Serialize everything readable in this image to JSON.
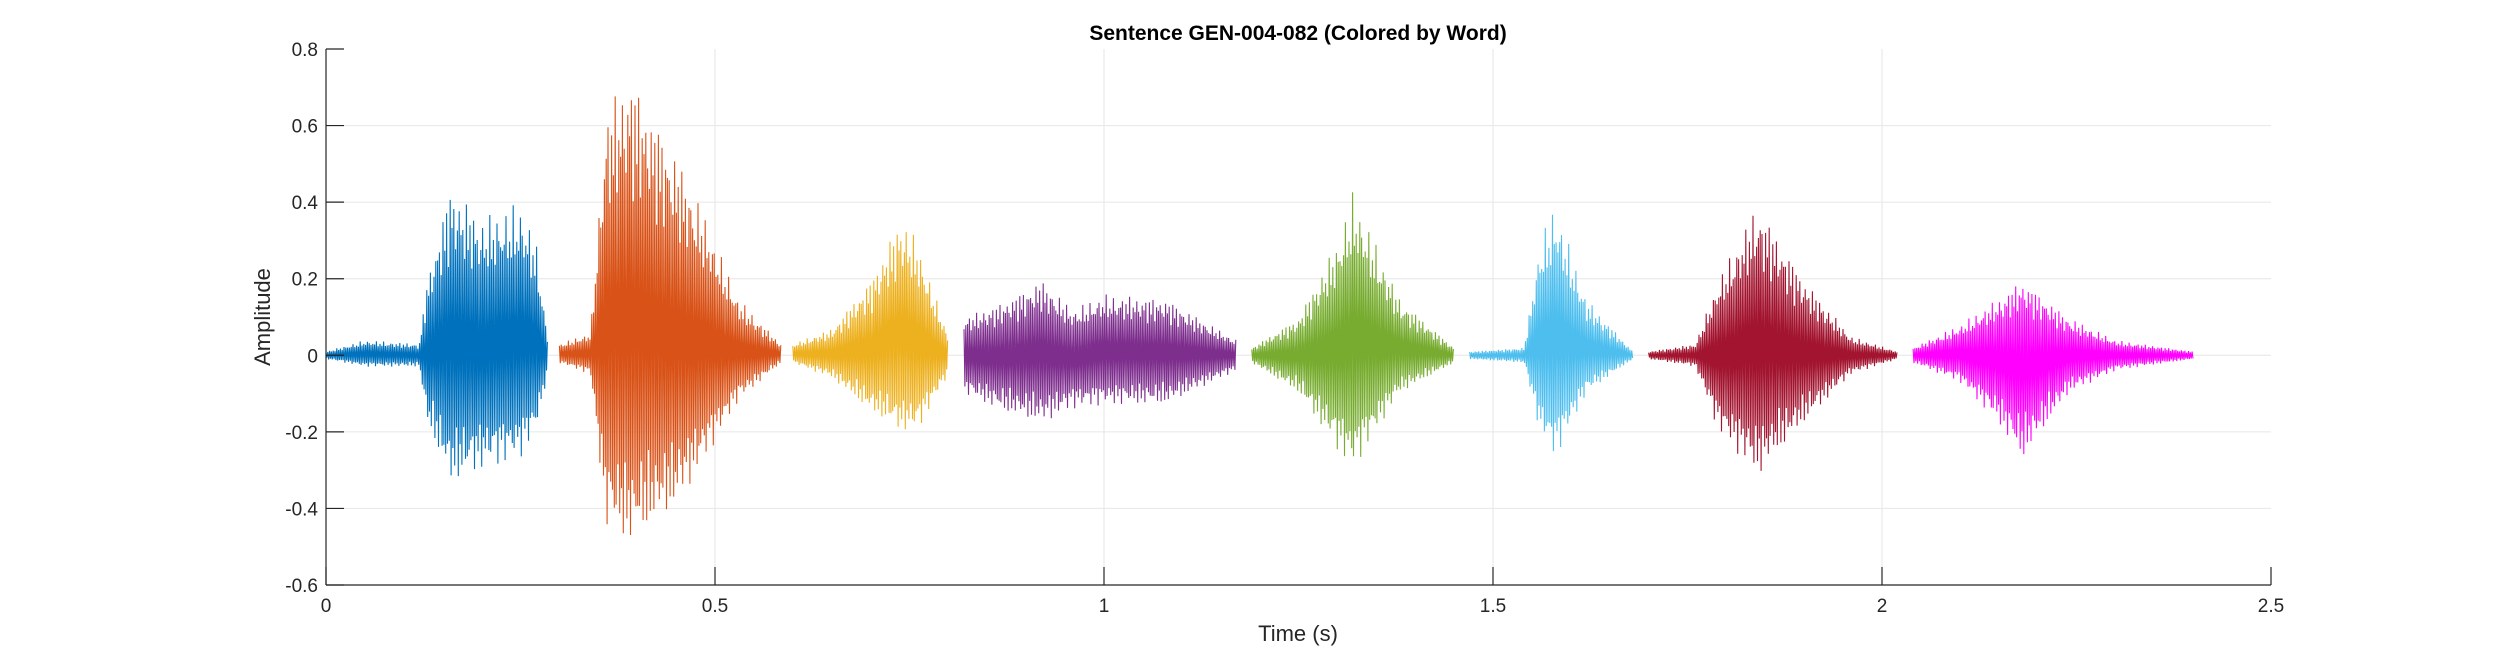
{
  "chart_data": {
    "type": "line",
    "title": "Sentence GEN-004-082 (Colored by Word)",
    "xlabel": "Time (s)",
    "ylabel": "Amplitude",
    "xlim": [
      0,
      2.5
    ],
    "ylim": [
      -0.6,
      0.8
    ],
    "xticks": [
      0,
      0.5,
      1,
      1.5,
      2,
      2.5
    ],
    "xtick_labels": [
      "0",
      "0.5",
      "1",
      "1.5",
      "2",
      "2.5"
    ],
    "yticks": [
      -0.6,
      -0.4,
      -0.2,
      0,
      0.2,
      0.4,
      0.6,
      0.8
    ],
    "ytick_labels": [
      "-0.6",
      "-0.4",
      "-0.2",
      "0",
      "0.2",
      "0.4",
      "0.6",
      "0.8"
    ],
    "grid": true,
    "legend": "none",
    "series": [
      {
        "color": "#0072BD",
        "t_start": 0.0,
        "t_end": 0.285,
        "envelope_t": [
          0.0,
          0.05,
          0.12,
          0.13,
          0.16,
          0.2,
          0.25,
          0.27,
          0.285
        ],
        "envelope_max": [
          0.01,
          0.04,
          0.03,
          0.2,
          0.45,
          0.36,
          0.4,
          0.3,
          0.05
        ],
        "envelope_min": [
          -0.01,
          -0.03,
          -0.03,
          -0.18,
          -0.34,
          -0.3,
          -0.27,
          -0.2,
          -0.05
        ]
      },
      {
        "color": "#D95319",
        "t_start": 0.3,
        "t_end": 0.585,
        "envelope_t": [
          0.3,
          0.34,
          0.36,
          0.39,
          0.45,
          0.48,
          0.53,
          0.585
        ],
        "envelope_max": [
          0.03,
          0.06,
          0.65,
          0.75,
          0.53,
          0.4,
          0.15,
          0.03
        ],
        "envelope_min": [
          -0.02,
          -0.05,
          -0.45,
          -0.5,
          -0.4,
          -0.3,
          -0.12,
          -0.02
        ]
      },
      {
        "color": "#EDB120",
        "t_start": 0.6,
        "t_end": 0.8,
        "envelope_t": [
          0.6,
          0.65,
          0.7,
          0.74,
          0.76,
          0.8
        ],
        "envelope_max": [
          0.03,
          0.07,
          0.2,
          0.37,
          0.3,
          0.05
        ],
        "envelope_min": [
          -0.02,
          -0.06,
          -0.15,
          -0.2,
          -0.2,
          -0.05
        ]
      },
      {
        "color": "#7E2F8E",
        "t_start": 0.82,
        "t_end": 1.17,
        "envelope_t": [
          0.82,
          0.87,
          0.92,
          0.96,
          1.0,
          1.08,
          1.17
        ],
        "envelope_max": [
          0.1,
          0.14,
          0.2,
          0.12,
          0.16,
          0.15,
          0.04
        ],
        "envelope_min": [
          -0.1,
          -0.15,
          -0.18,
          -0.14,
          -0.13,
          -0.13,
          -0.04
        ]
      },
      {
        "color": "#77AC30",
        "t_start": 1.19,
        "t_end": 1.45,
        "envelope_t": [
          1.19,
          1.25,
          1.3,
          1.32,
          1.38,
          1.45
        ],
        "envelope_max": [
          0.02,
          0.1,
          0.3,
          0.43,
          0.15,
          0.02
        ],
        "envelope_min": [
          -0.02,
          -0.1,
          -0.25,
          -0.3,
          -0.1,
          -0.02
        ]
      },
      {
        "color": "#4DBEEE",
        "t_start": 1.47,
        "t_end": 1.68,
        "envelope_t": [
          1.47,
          1.54,
          1.56,
          1.58,
          1.62,
          1.68
        ],
        "envelope_max": [
          0.01,
          0.02,
          0.3,
          0.4,
          0.15,
          0.01
        ],
        "envelope_min": [
          -0.01,
          -0.02,
          -0.2,
          -0.27,
          -0.1,
          -0.01
        ]
      },
      {
        "color": "#A2142F",
        "t_start": 1.7,
        "t_end": 2.02,
        "envelope_t": [
          1.7,
          1.76,
          1.79,
          1.84,
          1.9,
          1.96,
          2.02
        ],
        "envelope_max": [
          0.01,
          0.03,
          0.2,
          0.4,
          0.2,
          0.05,
          0.01
        ],
        "envelope_min": [
          -0.01,
          -0.03,
          -0.2,
          -0.32,
          -0.18,
          -0.05,
          -0.01
        ]
      },
      {
        "color": "#FF00FF",
        "t_start": 2.04,
        "t_end": 2.4,
        "envelope_t": [
          2.04,
          2.1,
          2.15,
          2.18,
          2.24,
          2.3,
          2.4
        ],
        "envelope_max": [
          0.02,
          0.08,
          0.15,
          0.2,
          0.1,
          0.04,
          0.01
        ],
        "envelope_min": [
          -0.02,
          -0.07,
          -0.18,
          -0.28,
          -0.1,
          -0.04,
          -0.01
        ]
      }
    ]
  }
}
